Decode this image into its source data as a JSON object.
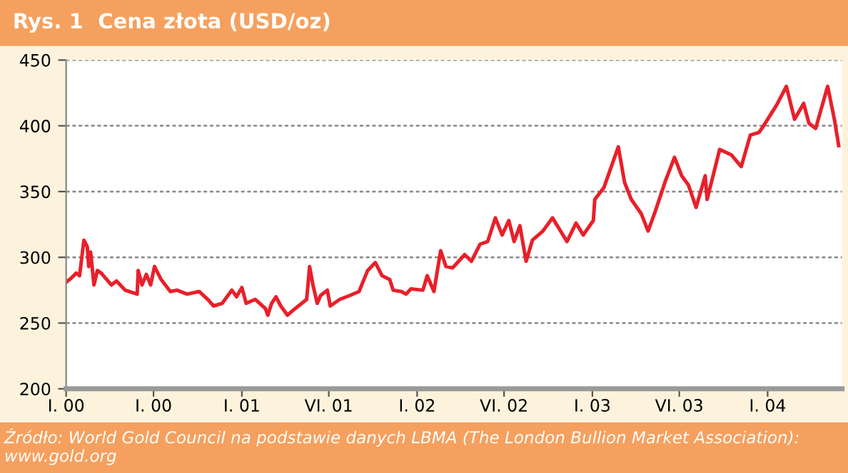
{
  "chart_data": {
    "type": "line",
    "title": "Rys. 1  Cena złota (USD/oz)",
    "annotations": [
      "Źródło: World Gold Council na podstawie danych LBMA (The London Bullion Market Association): www.gold.org"
    ],
    "xlim": [
      "2000-01-01",
      "2004-06-04"
    ],
    "xticks": [
      {
        "value": "2000-01-01",
        "label": "I. 00"
      },
      {
        "value": "2000-07-01",
        "label": "I. 00"
      },
      {
        "value": "2001-01-01",
        "label": "I. 01"
      },
      {
        "value": "2001-07-01",
        "label": "VI. 01"
      },
      {
        "value": "2002-01-01",
        "label": "I. 02"
      },
      {
        "value": "2002-07-01",
        "label": "VI. 02"
      },
      {
        "value": "2003-01-01",
        "label": "I. 03"
      },
      {
        "value": "2003-07-01",
        "label": "VI. 03"
      },
      {
        "value": "2004-01-01",
        "label": "I. 04"
      }
    ],
    "ylim": [
      200,
      450
    ],
    "yticks": [
      200,
      250,
      300,
      350,
      400,
      450
    ],
    "grid": "y",
    "marker": "none",
    "line_style": "solid",
    "series": [
      {
        "color": "#e8202a",
        "x": [
          "2000-01-01",
          "2000-01-11",
          "2000-01-22",
          "2000-01-29",
          "2000-02-07",
          "2000-02-14",
          "2000-02-17",
          "2000-02-21",
          "2000-02-28",
          "2000-03-06",
          "2000-03-14",
          "2000-04-04",
          "2000-04-15",
          "2000-05-03",
          "2000-05-28",
          "2000-05-30",
          "2000-06-07",
          "2000-06-16",
          "2000-06-25",
          "2000-07-03",
          "2000-07-17",
          "2000-08-05",
          "2000-08-19",
          "2000-09-09",
          "2000-10-04",
          "2000-10-22",
          "2000-11-03",
          "2000-11-21",
          "2000-12-11",
          "2000-12-21",
          "2001-01-01",
          "2001-01-10",
          "2001-01-29",
          "2001-02-19",
          "2001-02-24",
          "2001-03-04",
          "2001-03-13",
          "2001-03-23",
          "2001-04-06",
          "2001-04-22",
          "2001-05-16",
          "2001-05-22",
          "2001-05-29",
          "2001-06-07",
          "2001-06-14",
          "2001-06-28",
          "2001-07-04",
          "2001-07-24",
          "2001-08-14",
          "2001-09-02",
          "2001-09-20",
          "2001-10-06",
          "2001-10-20",
          "2001-11-05",
          "2001-11-12",
          "2001-11-29",
          "2001-12-09",
          "2001-12-19",
          "2002-01-13",
          "2002-01-22",
          "2002-02-05",
          "2002-02-19",
          "2002-03-02",
          "2002-03-16",
          "2002-04-10",
          "2002-04-24",
          "2002-05-12",
          "2002-05-28",
          "2002-06-13",
          "2002-06-27",
          "2002-07-11",
          "2002-07-22",
          "2002-08-03",
          "2002-08-16",
          "2002-08-29",
          "2002-09-20",
          "2002-10-10",
          "2002-11-09",
          "2002-11-28",
          "2002-12-13",
          "2003-01-03",
          "2003-01-06",
          "2003-01-25",
          "2003-02-24",
          "2003-03-09",
          "2003-03-23",
          "2003-04-13",
          "2003-04-27",
          "2003-05-12",
          "2003-06-02",
          "2003-06-21",
          "2003-07-06",
          "2003-07-20",
          "2003-08-05",
          "2003-08-24",
          "2003-08-28",
          "2003-09-23",
          "2003-10-17",
          "2003-11-07",
          "2003-11-26",
          "2003-12-14",
          "2003-12-20",
          "2004-01-20",
          "2004-02-09",
          "2004-02-26",
          "2004-03-16",
          "2004-03-27",
          "2004-04-10",
          "2004-05-05",
          "2004-05-19",
          "2004-05-28"
        ],
        "values": [
          281,
          284,
          288,
          286,
          313,
          308,
          293,
          304,
          279,
          290,
          288,
          279,
          282,
          275,
          272,
          290,
          279,
          287,
          279,
          293,
          283,
          274,
          275,
          272,
          274,
          268,
          263,
          265,
          275,
          270,
          277,
          265,
          268,
          261,
          256,
          265,
          270,
          263,
          256,
          261,
          268,
          293,
          279,
          265,
          271,
          275,
          263,
          268,
          271,
          274,
          290,
          296,
          286,
          283,
          275,
          274,
          272,
          276,
          275,
          286,
          274,
          305,
          293,
          292,
          302,
          297,
          310,
          312,
          330,
          317,
          328,
          312,
          324,
          297,
          313,
          320,
          330,
          312,
          326,
          317,
          328,
          344,
          353,
          384,
          357,
          344,
          333,
          320,
          335,
          358,
          376,
          362,
          355,
          338,
          362,
          344,
          382,
          378,
          369,
          393,
          395,
          398,
          416,
          430,
          405,
          417,
          402,
          398,
          430,
          405,
          385
        ]
      }
    ]
  }
}
